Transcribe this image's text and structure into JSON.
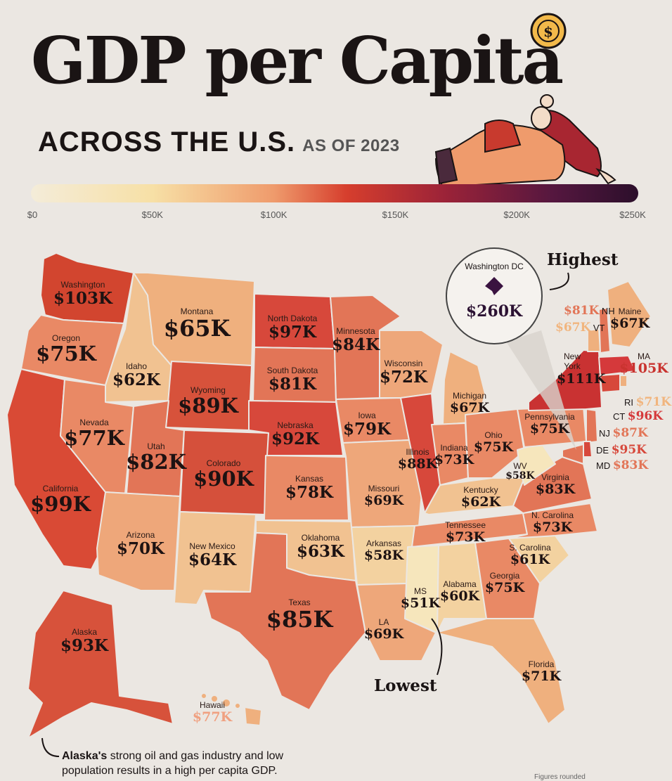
{
  "header": {
    "title": "GDP per Capita",
    "subtitle": "ACROSS THE U.S.",
    "subtitle_small": "AS OF 2023"
  },
  "legend": {
    "ticks": [
      "$0",
      "$50K",
      "$100K",
      "$150K",
      "$200K",
      "$250K"
    ],
    "min": 0,
    "max": 250000
  },
  "callouts": {
    "highest": "Highest",
    "lowest": "Lowest"
  },
  "dc": {
    "name": "Washington DC",
    "value": "$260K"
  },
  "states": {
    "washington": {
      "name": "Washington",
      "value": "$103K"
    },
    "oregon": {
      "name": "Oregon",
      "value": "$75K"
    },
    "california": {
      "name": "California",
      "value": "$99K"
    },
    "idaho": {
      "name": "Idaho",
      "value": "$62K"
    },
    "nevada": {
      "name": "Nevada",
      "value": "$77K"
    },
    "montana": {
      "name": "Montana",
      "value": "$65K"
    },
    "wyoming": {
      "name": "Wyoming",
      "value": "$89K"
    },
    "utah": {
      "name": "Utah",
      "value": "$82K"
    },
    "arizona": {
      "name": "Arizona",
      "value": "$70K"
    },
    "colorado": {
      "name": "Colorado",
      "value": "$90K"
    },
    "new_mexico": {
      "name": "New Mexico",
      "value": "$64K"
    },
    "north_dakota": {
      "name": "North Dakota",
      "value": "$97K"
    },
    "south_dakota": {
      "name": "South Dakota",
      "value": "$81K"
    },
    "nebraska": {
      "name": "Nebraska",
      "value": "$92K"
    },
    "kansas": {
      "name": "Kansas",
      "value": "$78K"
    },
    "oklahoma": {
      "name": "Oklahoma",
      "value": "$63K"
    },
    "texas": {
      "name": "Texas",
      "value": "$85K"
    },
    "minnesota": {
      "name": "Minnesota",
      "value": "$84K"
    },
    "iowa": {
      "name": "Iowa",
      "value": "$79K"
    },
    "missouri": {
      "name": "Missouri",
      "value": "$69K"
    },
    "arkansas": {
      "name": "Arkansas",
      "value": "$58K"
    },
    "louisiana": {
      "name": "LA",
      "value": "$69K"
    },
    "wisconsin": {
      "name": "Wisconsin",
      "value": "$72K"
    },
    "illinois": {
      "name": "Illinois",
      "value": "$88K"
    },
    "michigan": {
      "name": "Michigan",
      "value": "$67K"
    },
    "indiana": {
      "name": "Indiana",
      "value": "$73K"
    },
    "ohio": {
      "name": "Ohio",
      "value": "$75K"
    },
    "kentucky": {
      "name": "Kentucky",
      "value": "$62K"
    },
    "tennessee": {
      "name": "Tennessee",
      "value": "$73K"
    },
    "mississippi": {
      "name": "MS",
      "value": "$51K"
    },
    "alabama": {
      "name": "Alabama",
      "value": "$60K"
    },
    "georgia": {
      "name": "Georgia",
      "value": "$75K"
    },
    "florida": {
      "name": "Florida",
      "value": "$71K"
    },
    "south_carolina": {
      "name": "S. Carolina",
      "value": "$61K"
    },
    "north_carolina": {
      "name": "N. Carolina",
      "value": "$73K"
    },
    "virginia": {
      "name": "Virginia",
      "value": "$83K"
    },
    "west_virginia": {
      "name": "WV",
      "value": "$58K"
    },
    "pennsylvania": {
      "name": "Pennsylvania",
      "value": "$75K"
    },
    "new_york": {
      "name": "New York",
      "value": "$111K"
    },
    "maine": {
      "name": "Maine",
      "value": "$67K"
    },
    "massachusetts": {
      "name": "MA",
      "value": "$105K"
    },
    "alaska": {
      "name": "Alaska",
      "value": "$93K"
    },
    "hawaii": {
      "name": "Hawaii",
      "value": "$77K"
    }
  },
  "small_states": {
    "nh": {
      "abbr": "NH",
      "value": "$81K"
    },
    "vt": {
      "abbr": "VT",
      "value": "$67K"
    },
    "ri": {
      "abbr": "RI",
      "value": "$71K"
    },
    "ct": {
      "abbr": "CT",
      "value": "$96K"
    },
    "nj": {
      "abbr": "NJ",
      "value": "$87K"
    },
    "de": {
      "abbr": "DE",
      "value": "$95K"
    },
    "md": {
      "abbr": "MD",
      "value": "$83K"
    }
  },
  "note": {
    "bold": "Alaska's",
    "text": " strong oil and gas industry and low population results in a high per capita GDP."
  },
  "footer": "Figures rounded",
  "colors": {
    "low": "#f4ecd9",
    "mid_low": "#f7e0a6",
    "mid": "#d63e2d",
    "high": "#9c2338",
    "max": "#2c0f2b",
    "background": "#ebe7e2"
  }
}
